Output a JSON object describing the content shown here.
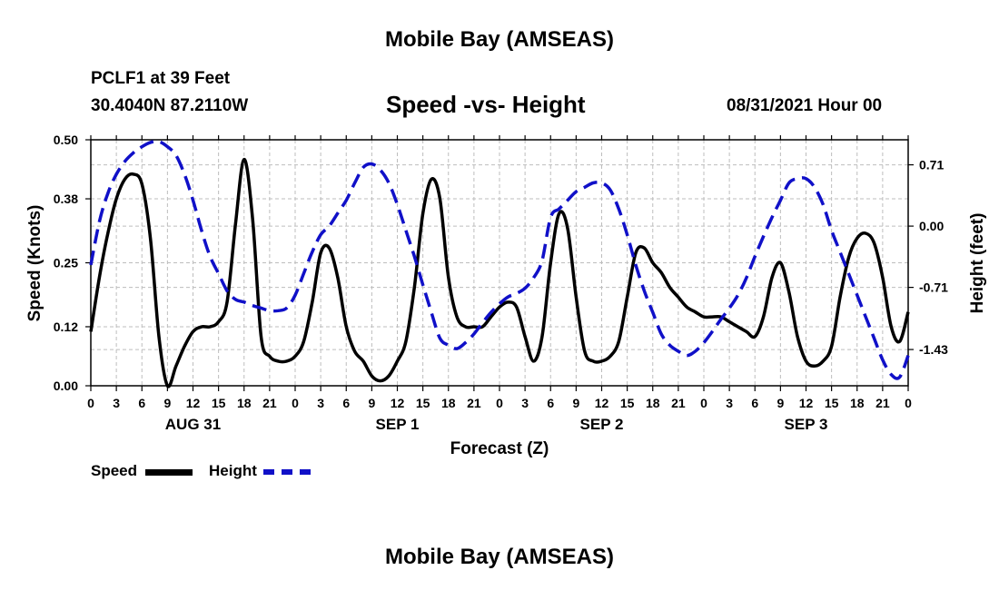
{
  "header": {
    "title": "Mobile Bay (AMSEAS)",
    "station": "PCLF1 at 39 Feet",
    "coords": "30.4040N  87.2110W",
    "subtitle": "Speed -vs- Height",
    "datestamp": "08/31/2021 Hour 00"
  },
  "footer": {
    "title": "Mobile Bay (AMSEAS)"
  },
  "legend": {
    "speed_label": "Speed",
    "height_label": "Height"
  },
  "colors": {
    "speed": "#000000",
    "height": "#1010c8",
    "grid": "#bdbdbd"
  },
  "chart_data": {
    "type": "line",
    "title": "Speed -vs- Height",
    "xlabel": "Forecast (Z)",
    "ylabel_left": "Speed (Knots)",
    "ylabel_right": "Height (feet)",
    "x_range_hours": [
      0,
      96
    ],
    "ylim_left": [
      0,
      0.5
    ],
    "ylim_right": [
      -1.85,
      1.0
    ],
    "left_ticks": [
      "0.50",
      "0.38",
      "0.25",
      "0.12",
      "0.00"
    ],
    "left_tick_values": [
      0.5,
      0.38,
      0.25,
      0.12,
      0.0
    ],
    "right_ticks": [
      "0.71",
      "0.00",
      "-0.71",
      "-1.43"
    ],
    "right_tick_values": [
      0.71,
      0.0,
      -0.71,
      -1.43
    ],
    "x_tick_hours": [
      0,
      3,
      6,
      9,
      12,
      15,
      18,
      21,
      24,
      27,
      30,
      33,
      36,
      39,
      42,
      45,
      48,
      51,
      54,
      57,
      60,
      63,
      66,
      69,
      72,
      75,
      78,
      81,
      84,
      87,
      90,
      93,
      96
    ],
    "x_tick_labels": [
      "0",
      "3",
      "6",
      "9",
      "12",
      "15",
      "18",
      "21",
      "0",
      "3",
      "6",
      "9",
      "12",
      "15",
      "18",
      "21",
      "0",
      "3",
      "6",
      "9",
      "12",
      "15",
      "18",
      "21",
      "0",
      "3",
      "6",
      "9",
      "12",
      "15",
      "18",
      "21",
      "0"
    ],
    "day_labels": [
      {
        "label": "AUG 31",
        "hour": 12
      },
      {
        "label": "SEP 1",
        "hour": 36
      },
      {
        "label": "SEP 2",
        "hour": 60
      },
      {
        "label": "SEP 3",
        "hour": 84
      }
    ],
    "series": [
      {
        "name": "Speed",
        "axis": "left",
        "style": "solid",
        "points": [
          [
            0,
            0.11
          ],
          [
            1,
            0.22
          ],
          [
            2,
            0.31
          ],
          [
            3,
            0.38
          ],
          [
            4,
            0.42
          ],
          [
            5,
            0.43
          ],
          [
            6,
            0.41
          ],
          [
            7,
            0.3
          ],
          [
            8,
            0.1
          ],
          [
            9,
            0.0
          ],
          [
            10,
            0.04
          ],
          [
            11,
            0.08
          ],
          [
            12,
            0.11
          ],
          [
            13,
            0.12
          ],
          [
            14,
            0.12
          ],
          [
            15,
            0.13
          ],
          [
            16,
            0.17
          ],
          [
            17,
            0.33
          ],
          [
            18,
            0.46
          ],
          [
            19,
            0.34
          ],
          [
            20,
            0.1
          ],
          [
            21,
            0.06
          ],
          [
            22,
            0.05
          ],
          [
            23,
            0.05
          ],
          [
            24,
            0.06
          ],
          [
            25,
            0.09
          ],
          [
            26,
            0.17
          ],
          [
            27,
            0.27
          ],
          [
            28,
            0.28
          ],
          [
            29,
            0.22
          ],
          [
            30,
            0.12
          ],
          [
            31,
            0.07
          ],
          [
            32,
            0.05
          ],
          [
            33,
            0.02
          ],
          [
            34,
            0.01
          ],
          [
            35,
            0.02
          ],
          [
            36,
            0.05
          ],
          [
            37,
            0.09
          ],
          [
            38,
            0.2
          ],
          [
            39,
            0.35
          ],
          [
            40,
            0.42
          ],
          [
            41,
            0.38
          ],
          [
            42,
            0.22
          ],
          [
            43,
            0.14
          ],
          [
            44,
            0.12
          ],
          [
            45,
            0.12
          ],
          [
            46,
            0.12
          ],
          [
            47,
            0.14
          ],
          [
            48,
            0.16
          ],
          [
            49,
            0.17
          ],
          [
            50,
            0.16
          ],
          [
            51,
            0.1
          ],
          [
            52,
            0.05
          ],
          [
            53,
            0.1
          ],
          [
            54,
            0.25
          ],
          [
            55,
            0.35
          ],
          [
            56,
            0.32
          ],
          [
            57,
            0.18
          ],
          [
            58,
            0.07
          ],
          [
            59,
            0.05
          ],
          [
            60,
            0.05
          ],
          [
            61,
            0.06
          ],
          [
            62,
            0.09
          ],
          [
            63,
            0.18
          ],
          [
            64,
            0.27
          ],
          [
            65,
            0.28
          ],
          [
            66,
            0.25
          ],
          [
            67,
            0.23
          ],
          [
            68,
            0.2
          ],
          [
            69,
            0.18
          ],
          [
            70,
            0.16
          ],
          [
            71,
            0.15
          ],
          [
            72,
            0.14
          ],
          [
            73,
            0.14
          ],
          [
            74,
            0.14
          ],
          [
            75,
            0.13
          ],
          [
            76,
            0.12
          ],
          [
            77,
            0.11
          ],
          [
            78,
            0.1
          ],
          [
            79,
            0.14
          ],
          [
            80,
            0.22
          ],
          [
            81,
            0.25
          ],
          [
            82,
            0.19
          ],
          [
            83,
            0.1
          ],
          [
            84,
            0.05
          ],
          [
            85,
            0.04
          ],
          [
            86,
            0.05
          ],
          [
            87,
            0.08
          ],
          [
            88,
            0.18
          ],
          [
            89,
            0.26
          ],
          [
            90,
            0.3
          ],
          [
            91,
            0.31
          ],
          [
            92,
            0.29
          ],
          [
            93,
            0.22
          ],
          [
            94,
            0.12
          ],
          [
            95,
            0.09
          ],
          [
            96,
            0.15
          ]
        ]
      },
      {
        "name": "Height",
        "axis": "right",
        "style": "dashed",
        "points": [
          [
            0,
            -0.45
          ],
          [
            1,
            0.05
          ],
          [
            2,
            0.38
          ],
          [
            3,
            0.6
          ],
          [
            4,
            0.75
          ],
          [
            5,
            0.85
          ],
          [
            6,
            0.92
          ],
          [
            7,
            0.97
          ],
          [
            8,
            0.98
          ],
          [
            9,
            0.92
          ],
          [
            10,
            0.82
          ],
          [
            11,
            0.6
          ],
          [
            12,
            0.3
          ],
          [
            13,
            -0.05
          ],
          [
            14,
            -0.35
          ],
          [
            15,
            -0.55
          ],
          [
            16,
            -0.75
          ],
          [
            17,
            -0.85
          ],
          [
            18,
            -0.88
          ],
          [
            19,
            -0.92
          ],
          [
            20,
            -0.95
          ],
          [
            21,
            -0.98
          ],
          [
            22,
            -0.98
          ],
          [
            23,
            -0.95
          ],
          [
            24,
            -0.8
          ],
          [
            25,
            -0.55
          ],
          [
            26,
            -0.3
          ],
          [
            27,
            -0.1
          ],
          [
            28,
            0.0
          ],
          [
            29,
            0.15
          ],
          [
            30,
            0.3
          ],
          [
            31,
            0.5
          ],
          [
            32,
            0.68
          ],
          [
            33,
            0.72
          ],
          [
            34,
            0.65
          ],
          [
            35,
            0.5
          ],
          [
            36,
            0.25
          ],
          [
            37,
            -0.05
          ],
          [
            38,
            -0.35
          ],
          [
            39,
            -0.68
          ],
          [
            40,
            -1.0
          ],
          [
            41,
            -1.3
          ],
          [
            42,
            -1.38
          ],
          [
            43,
            -1.42
          ],
          [
            44,
            -1.35
          ],
          [
            45,
            -1.25
          ],
          [
            46,
            -1.12
          ],
          [
            47,
            -1.0
          ],
          [
            48,
            -0.9
          ],
          [
            49,
            -0.82
          ],
          [
            50,
            -0.78
          ],
          [
            51,
            -0.72
          ],
          [
            52,
            -0.6
          ],
          [
            53,
            -0.4
          ],
          [
            54,
            0.1
          ],
          [
            55,
            0.2
          ],
          [
            56,
            0.3
          ],
          [
            57,
            0.4
          ],
          [
            58,
            0.45
          ],
          [
            59,
            0.5
          ],
          [
            60,
            0.5
          ],
          [
            61,
            0.42
          ],
          [
            62,
            0.2
          ],
          [
            63,
            -0.1
          ],
          [
            64,
            -0.45
          ],
          [
            65,
            -0.75
          ],
          [
            66,
            -1.0
          ],
          [
            67,
            -1.25
          ],
          [
            68,
            -1.38
          ],
          [
            69,
            -1.45
          ],
          [
            70,
            -1.5
          ],
          [
            71,
            -1.45
          ],
          [
            72,
            -1.35
          ],
          [
            73,
            -1.22
          ],
          [
            74,
            -1.08
          ],
          [
            75,
            -0.95
          ],
          [
            76,
            -0.8
          ],
          [
            77,
            -0.6
          ],
          [
            78,
            -0.35
          ],
          [
            79,
            -0.12
          ],
          [
            80,
            0.1
          ],
          [
            81,
            0.3
          ],
          [
            82,
            0.5
          ],
          [
            83,
            0.55
          ],
          [
            84,
            0.55
          ],
          [
            85,
            0.45
          ],
          [
            86,
            0.25
          ],
          [
            87,
            -0.05
          ],
          [
            88,
            -0.3
          ],
          [
            89,
            -0.55
          ],
          [
            90,
            -0.8
          ],
          [
            91,
            -1.05
          ],
          [
            92,
            -1.3
          ],
          [
            93,
            -1.55
          ],
          [
            94,
            -1.72
          ],
          [
            95,
            -1.75
          ],
          [
            96,
            -1.5
          ]
        ]
      }
    ]
  }
}
